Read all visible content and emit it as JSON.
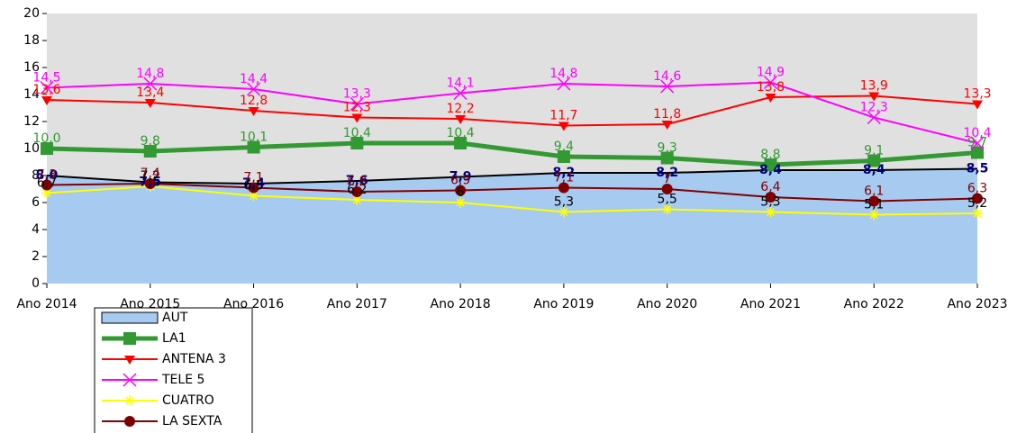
{
  "chart_data": {
    "type": "line",
    "categories": [
      "Ano 2014",
      "Ano 2015",
      "Ano 2016",
      "Ano 2017",
      "Ano 2018",
      "Ano 2019",
      "Ano 2020",
      "Ano 2021",
      "Ano 2022",
      "Ano 2023"
    ],
    "ylim": [
      0,
      20
    ],
    "yticks": [
      0,
      2,
      4,
      6,
      8,
      10,
      12,
      14,
      16,
      18,
      20
    ],
    "legend": "bottom-left",
    "series": [
      {
        "name": "AUT",
        "kind": "area",
        "color": "#a6caf0",
        "label_color": "#000080",
        "values": [
          8.0,
          7.5,
          7.4,
          7.6,
          7.9,
          8.2,
          8.2,
          8.4,
          8.4,
          8.5
        ],
        "value_labels": [
          "8,0",
          "7,5",
          "7,4",
          "7,6",
          "7,9",
          "8,2",
          "8,2",
          "8,4",
          "8,4",
          "8,5"
        ]
      },
      {
        "name": "LA1",
        "marker": "square",
        "color": "#339933",
        "label_color": "#339933",
        "values": [
          10.0,
          9.8,
          10.1,
          10.4,
          10.4,
          9.4,
          9.3,
          8.8,
          9.1,
          9.7
        ],
        "value_labels": [
          "10,0",
          "9,8",
          "10,1",
          "10,4",
          "10,4",
          "9,4",
          "9,3",
          "8,8",
          "9,1",
          "9,7"
        ]
      },
      {
        "name": "ANTENA 3",
        "marker": "triangle",
        "color": "#ff0000",
        "label_color": "#ff0000",
        "values": [
          13.6,
          13.4,
          12.8,
          12.3,
          12.2,
          11.7,
          11.8,
          13.8,
          13.9,
          13.3
        ],
        "value_labels": [
          "13,6",
          "13,4",
          "12,8",
          "12,3",
          "12,2",
          "11,7",
          "11,8",
          "13,8",
          "13,9",
          "13,3"
        ]
      },
      {
        "name": "TELE 5",
        "marker": "x",
        "color": "#ff00ff",
        "label_color": "#ff00ff",
        "values": [
          14.5,
          14.8,
          14.4,
          13.3,
          14.1,
          14.8,
          14.6,
          14.9,
          12.3,
          10.4
        ],
        "value_labels": [
          "14,5",
          "14,8",
          "14,4",
          "13,3",
          "14,1",
          "14,8",
          "14,6",
          "14,9",
          "12,3",
          "10,4"
        ]
      },
      {
        "name": "CUATRO",
        "marker": "star",
        "color": "#ffff00",
        "label_color": "#000000",
        "values": [
          6.7,
          7.2,
          6.5,
          6.2,
          6,
          5.3,
          5.5,
          5.3,
          5.1,
          5.2
        ],
        "value_labels": [
          "6,7",
          "7,2",
          "6,5",
          "6,2",
          "6",
          "5,3",
          "5,5",
          "5,3",
          "5,1",
          "5,2"
        ]
      },
      {
        "name": "LA SEXTA",
        "marker": "circle",
        "color": "#800000",
        "label_color": "#800000",
        "values": [
          7.3,
          7.4,
          7.1,
          6.8,
          6.9,
          7.1,
          7,
          6.4,
          6.1,
          6.3
        ],
        "value_labels": [
          "7,3",
          "7,4",
          "7,1",
          "6,8",
          "6,9",
          "7,1",
          "7",
          "6,4",
          "6,1",
          "6,3"
        ]
      }
    ]
  }
}
